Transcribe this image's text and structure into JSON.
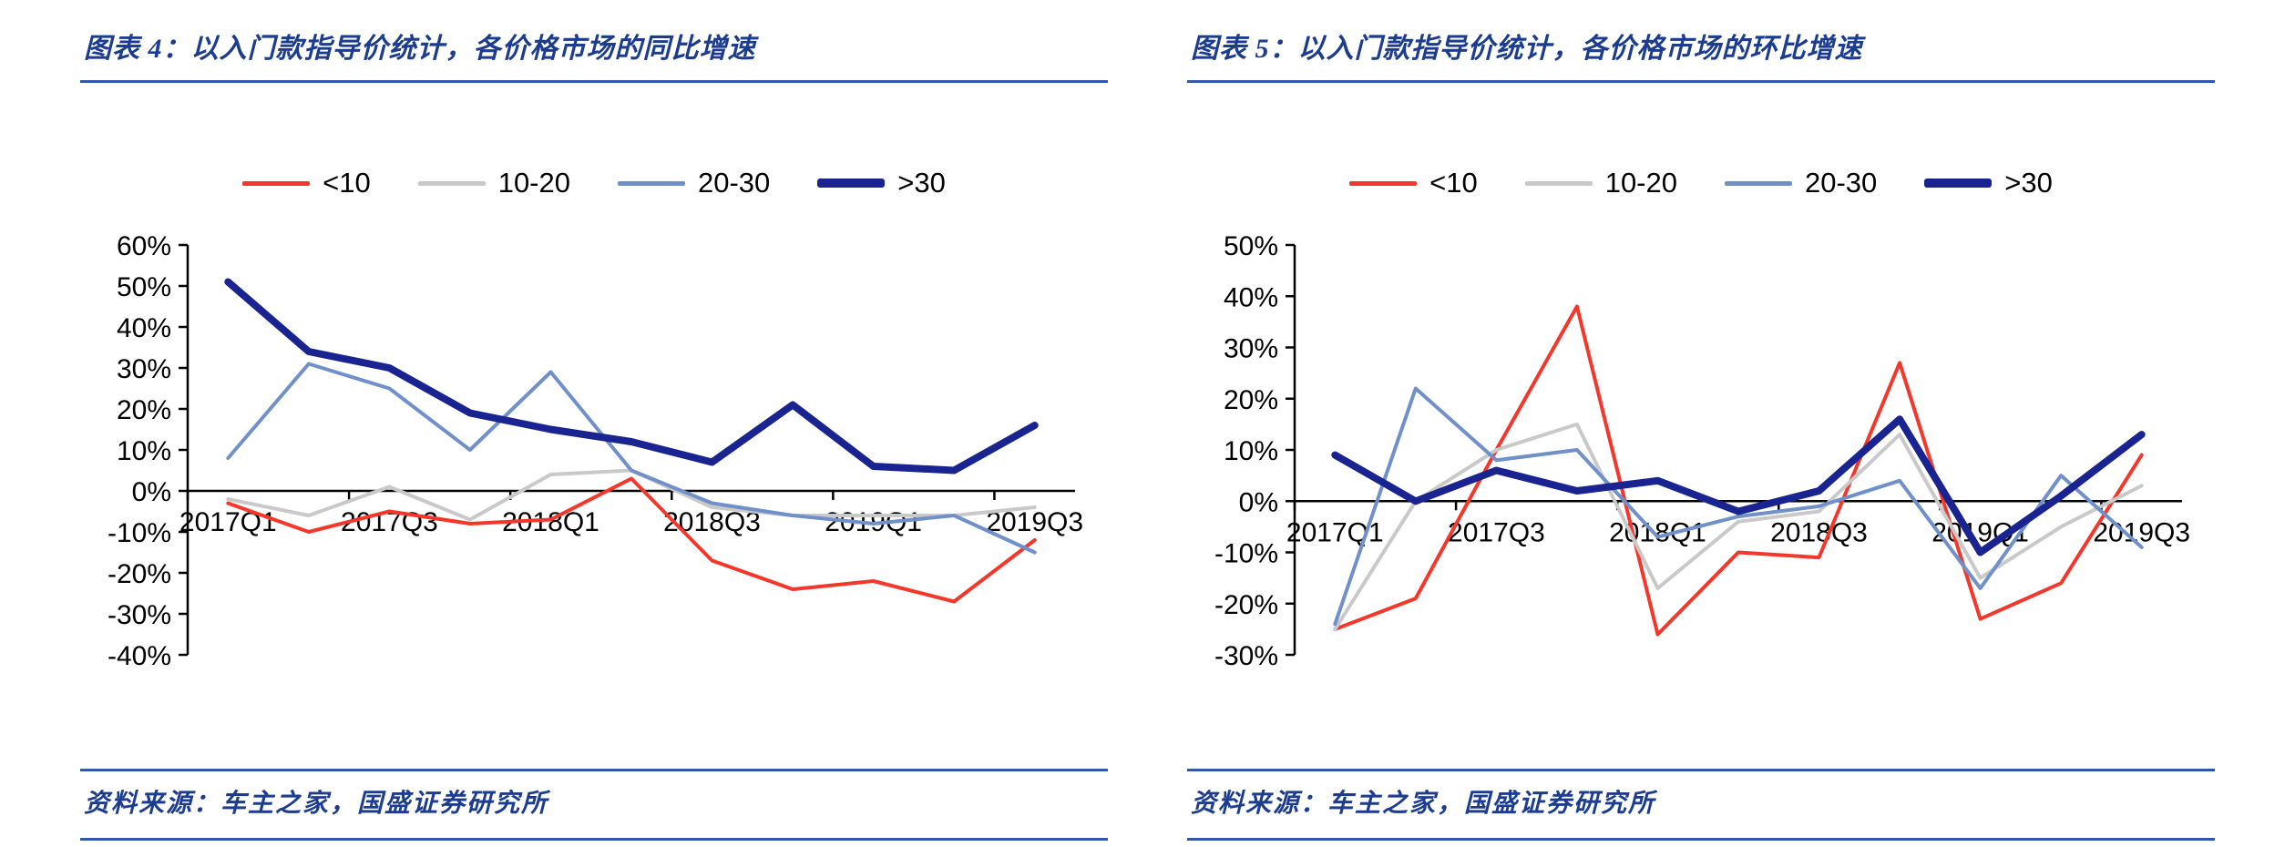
{
  "colors": {
    "title": "#1C3D8F",
    "rule": "#2E58A8",
    "red": "#F5372B",
    "gray": "#C9C9C9",
    "lightblue": "#7090C9",
    "navy": "#1A2490"
  },
  "figures": [
    {
      "title": "图表 4：以入门款指导价统计，各价格市场的同比增速",
      "legend": [
        "<10",
        "10-20",
        "20-30",
        ">30"
      ],
      "source": "资料来源：车主之家，国盛证券研究所"
    },
    {
      "title": "图表 5：以入门款指导价统计，各价格市场的环比增速",
      "legend": [
        "<10",
        "10-20",
        "20-30",
        ">30"
      ],
      "source": "资料来源：车主之家，国盛证券研究所"
    }
  ],
  "chart_data": [
    {
      "type": "line",
      "title": "以入门款指导价统计，各价格市场的同比增速",
      "categories": [
        "2017Q1",
        "2017Q2",
        "2017Q3",
        "2017Q4",
        "2018Q1",
        "2018Q2",
        "2018Q3",
        "2018Q4",
        "2019Q1",
        "2019Q2",
        "2019Q3"
      ],
      "visible_x_labels": [
        "2017Q1",
        "2017Q3",
        "2018Q1",
        "2018Q3",
        "2019Q1",
        "2019Q3"
      ],
      "ylim": [
        -40,
        60
      ],
      "ytick_step": 10,
      "grid": false,
      "legend_position": "top",
      "series": [
        {
          "name": "<10",
          "color_key": "red",
          "stroke_width": 4,
          "values": [
            -3,
            -10,
            -5,
            -8,
            -7,
            3,
            -17,
            -24,
            -22,
            -27,
            -12
          ]
        },
        {
          "name": "10-20",
          "color_key": "gray",
          "stroke_width": 4,
          "values": [
            -2,
            -6,
            1,
            -7,
            4,
            5,
            -4,
            -6,
            -6,
            -6,
            -4
          ]
        },
        {
          "name": "20-30",
          "color_key": "lightblue",
          "stroke_width": 4,
          "values": [
            8,
            31,
            25,
            10,
            29,
            5,
            -3,
            -6,
            -8,
            -6,
            -15
          ]
        },
        {
          "name": ">30",
          "color_key": "navy",
          "stroke_width": 8,
          "values": [
            51,
            34,
            30,
            19,
            15,
            12,
            7,
            21,
            6,
            5,
            16
          ]
        }
      ]
    },
    {
      "type": "line",
      "title": "以入门款指导价统计，各价格市场的环比增速",
      "categories": [
        "2017Q1",
        "2017Q2",
        "2017Q3",
        "2017Q4",
        "2018Q1",
        "2018Q2",
        "2018Q3",
        "2018Q4",
        "2019Q1",
        "2019Q2",
        "2019Q3"
      ],
      "visible_x_labels": [
        "2017Q1",
        "2017Q3",
        "2018Q1",
        "2018Q3",
        "2019Q1",
        "2019Q3"
      ],
      "ylim": [
        -30,
        50
      ],
      "ytick_step": 10,
      "grid": false,
      "legend_position": "top",
      "series": [
        {
          "name": "<10",
          "color_key": "red",
          "stroke_width": 4,
          "values": [
            -25,
            -19,
            10,
            38,
            -26,
            -10,
            -11,
            27,
            -23,
            -16,
            9
          ]
        },
        {
          "name": "10-20",
          "color_key": "gray",
          "stroke_width": 4,
          "values": [
            -25,
            0,
            10,
            15,
            -17,
            -4,
            -2,
            13,
            -15,
            -5,
            3
          ]
        },
        {
          "name": "20-30",
          "color_key": "lightblue",
          "stroke_width": 4,
          "values": [
            -24,
            22,
            8,
            10,
            -7,
            -3,
            -1,
            4,
            -17,
            5,
            -9
          ]
        },
        {
          "name": ">30",
          "color_key": "navy",
          "stroke_width": 8,
          "values": [
            9,
            0,
            6,
            2,
            4,
            -2,
            2,
            16,
            -10,
            1,
            13
          ]
        }
      ]
    }
  ]
}
